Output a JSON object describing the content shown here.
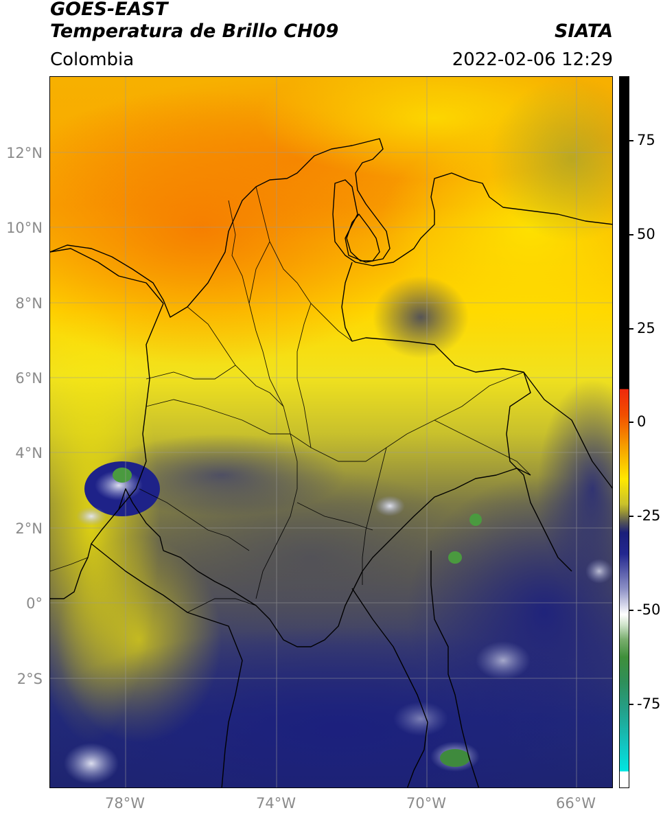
{
  "header": {
    "satellite": "GOES-EAST",
    "product": "Temperatura de Brillo CH09",
    "source": "SIATA",
    "region": "Colombia",
    "datetime": "2022-02-06 12:29"
  },
  "map": {
    "lat_labels": [
      "12°N",
      "10°N",
      "8°N",
      "6°N",
      "4°N",
      "2°N",
      "0°",
      "2°S"
    ],
    "lon_labels": [
      "78°W",
      "74°W",
      "70°W",
      "66°W"
    ],
    "gridlines": true
  },
  "colorbar": {
    "tick_labels": [
      "75",
      "50",
      "25",
      "0",
      "-25",
      "-50",
      "-75"
    ],
    "colors": {
      "hot": "#000000",
      "red": "#ee2a0c",
      "orange": "#f6a000",
      "yellow": "#ffe800",
      "olive": "#a8a52c",
      "gray": "#555555",
      "navy": "#1b1f7a",
      "white": "#ffffff",
      "green": "#3f8f3a",
      "cyan": "#00e5e0"
    }
  }
}
